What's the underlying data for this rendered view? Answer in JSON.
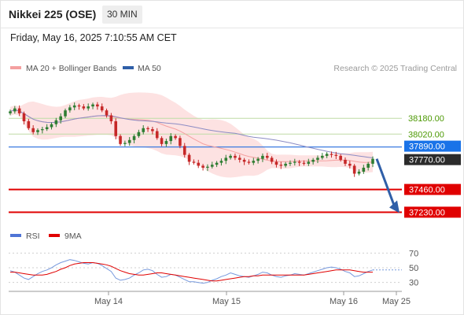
{
  "header": {
    "title": "Nikkei 225 (OSE)",
    "interval": "30 MIN",
    "datetime": "Friday, May 16, 2025 7:10:55 AM CET"
  },
  "colors": {
    "bollinger_fill": "#fde2e2",
    "ma20": "#f4a0a0",
    "ma50": "#8c8cc4",
    "candle_up": "#2e7d32",
    "candle_down": "#c62828",
    "resistance_line": "#bfdca6",
    "resistance_text": "#4e9a06",
    "current_line": "#3b7be0",
    "current_label_bg": "#1a73e8",
    "last_label_bg": "#2b2b2b",
    "support_line": "#e00000",
    "support_label_bg": "#e00000",
    "arrow": "#2f5fa8",
    "rsi": "#7799dd",
    "rsi_ma": "#e00000"
  },
  "chart_data": [
    {
      "type": "candlestick",
      "legend": [
        {
          "name": "MA 20 + Bollinger Bands",
          "color": "#f4a0a0"
        },
        {
          "name": "MA 50",
          "color": "#2f5fa8"
        }
      ],
      "credit": "Research © 2025 Trading Central",
      "ylim": [
        37130,
        38580
      ],
      "x_ticks": [
        "May 14",
        "May 15",
        "May 16",
        "May 25"
      ],
      "levels": [
        {
          "value": 38180,
          "label": "38180.00",
          "kind": "resistance"
        },
        {
          "value": 38020,
          "label": "38020.00",
          "kind": "resistance"
        },
        {
          "value": 37890,
          "label": "37890.00",
          "kind": "current"
        },
        {
          "value": 37770,
          "label": "37770.00",
          "kind": "last"
        },
        {
          "value": 37460,
          "label": "37460.00",
          "kind": "support"
        },
        {
          "value": 37230,
          "label": "37230.00",
          "kind": "support"
        }
      ],
      "closes": [
        38250,
        38280,
        38230,
        38150,
        38080,
        38040,
        38060,
        38070,
        38090,
        38120,
        38160,
        38200,
        38260,
        38290,
        38310,
        38300,
        38280,
        38300,
        38320,
        38300,
        38260,
        38210,
        38150,
        38000,
        37920,
        37930,
        37960,
        38000,
        38040,
        38080,
        38070,
        38050,
        37980,
        37920,
        37950,
        38000,
        37980,
        37900,
        37810,
        37740,
        37730,
        37700,
        37680,
        37690,
        37710,
        37730,
        37750,
        37780,
        37800,
        37780,
        37760,
        37740,
        37730,
        37750,
        37770,
        37800,
        37780,
        37740,
        37710,
        37700,
        37720,
        37730,
        37740,
        37730,
        37720,
        37740,
        37760,
        37780,
        37800,
        37820,
        37810,
        37800,
        37760,
        37720,
        37700,
        37620,
        37640,
        37680,
        37720,
        37770
      ],
      "forecast_arrow": {
        "from": 37770,
        "to": 37230
      }
    },
    {
      "type": "line",
      "legend": [
        {
          "name": "RSI",
          "color": "#7799dd"
        },
        {
          "name": "9MA",
          "color": "#e00000"
        }
      ],
      "ylim": [
        20,
        80
      ],
      "y_ticks": [
        70,
        50,
        30
      ],
      "rsi": [
        46,
        44,
        40,
        36,
        34,
        38,
        42,
        45,
        47,
        50,
        54,
        57,
        59,
        61,
        60,
        58,
        56,
        55,
        57,
        56,
        53,
        49,
        45,
        36,
        33,
        34,
        36,
        40,
        43,
        47,
        48,
        46,
        41,
        37,
        38,
        41,
        40,
        37,
        34,
        31,
        31,
        30,
        29,
        30,
        33,
        35,
        38,
        40,
        43,
        41,
        39,
        38,
        37,
        39,
        41,
        44,
        43,
        40,
        38,
        37,
        39,
        40,
        42,
        41,
        40,
        42,
        44,
        46,
        48,
        50,
        51,
        50,
        48,
        45,
        43,
        38,
        39,
        42,
        45,
        47
      ],
      "rsi_ma": [
        44,
        44,
        43,
        42,
        41,
        40,
        40,
        40,
        41,
        43,
        45,
        48,
        50,
        53,
        55,
        56,
        57,
        57,
        57,
        56,
        55,
        54,
        52,
        49,
        46,
        44,
        42,
        41,
        40,
        40,
        41,
        42,
        43,
        43,
        42,
        41,
        40,
        39,
        38,
        37,
        36,
        35,
        34,
        33,
        32,
        32,
        33,
        34,
        35,
        36,
        37,
        38,
        38,
        39,
        39,
        40,
        40,
        40,
        40,
        40,
        40,
        40,
        40,
        40,
        40,
        41,
        42,
        43,
        44,
        45,
        46,
        47,
        47,
        47,
        47,
        46,
        45,
        44,
        44,
        44
      ]
    }
  ]
}
